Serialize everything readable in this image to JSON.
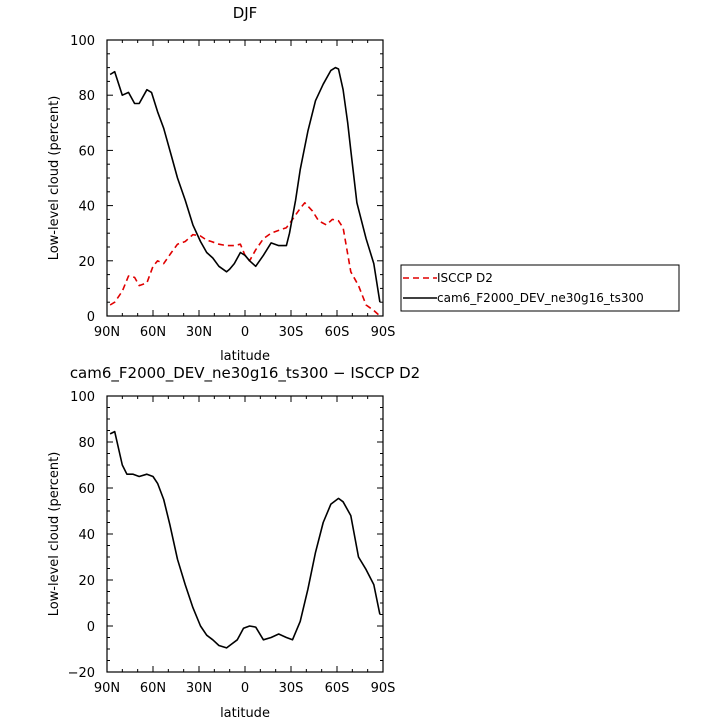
{
  "chart_data": [
    {
      "type": "line",
      "title": "DJF",
      "xlabel": "latitude",
      "ylabel": "Low-level cloud (percent)",
      "xlim": [
        90,
        -90
      ],
      "ylim": [
        0,
        100
      ],
      "xticks": [
        90,
        60,
        30,
        0,
        -30,
        -60,
        -90
      ],
      "xtick_labels": [
        "90N",
        "60N",
        "30N",
        "0",
        "30S",
        "60S",
        "90S"
      ],
      "yticks": [
        0,
        20,
        40,
        60,
        80,
        100
      ],
      "ytick_labels": [
        "0",
        "20",
        "40",
        "60",
        "80",
        "100"
      ],
      "legend_position": "right",
      "series": [
        {
          "name": "ISCCP D2",
          "color": "#e00000",
          "style": "dashed",
          "x": [
            88,
            85,
            80,
            76,
            72,
            69,
            64,
            60,
            57,
            53,
            48,
            44,
            39,
            34,
            29,
            25,
            22,
            17,
            12,
            7,
            3,
            0,
            -3,
            -7,
            -12,
            -17,
            -22,
            -27,
            -31,
            -36,
            -39,
            -44,
            -48,
            -53,
            -57,
            -61,
            -64,
            -69,
            -74,
            -79,
            -84,
            -88
          ],
          "y": [
            4,
            5,
            9,
            14.5,
            14,
            11,
            12,
            18,
            20,
            19,
            23,
            26,
            27,
            29.5,
            29,
            27.5,
            27,
            26,
            25.5,
            25.5,
            26,
            22,
            20,
            24,
            28,
            30,
            31,
            32,
            35,
            39,
            41,
            38,
            34.5,
            33,
            35,
            34.5,
            32,
            16,
            11,
            4,
            2,
            0
          ]
        },
        {
          "name": "cam6_F2000_DEV_ne30g16_ts300",
          "color": "#000000",
          "style": "solid",
          "x": [
            88,
            85,
            80,
            76,
            72,
            69,
            64,
            61,
            57,
            53,
            48,
            44,
            39,
            34,
            29,
            25,
            21,
            17,
            12,
            10,
            7,
            3,
            0,
            -3,
            -7,
            -12,
            -17,
            -22,
            -27,
            -29,
            -33,
            -36,
            -41,
            -46,
            -51,
            -56,
            -59,
            -61,
            -64,
            -67,
            -69,
            -73,
            -79,
            -84,
            -88
          ],
          "y": [
            87.5,
            88.5,
            80,
            81,
            77,
            77,
            82,
            81,
            74,
            68,
            58,
            50,
            42,
            33,
            27,
            23,
            21,
            18,
            16,
            17,
            19,
            23,
            22,
            20,
            18,
            22,
            26.5,
            25.5,
            25.5,
            30,
            42,
            53,
            67,
            78,
            84,
            89,
            90,
            89.5,
            82,
            70,
            60,
            41,
            28,
            19,
            5
          ]
        }
      ]
    },
    {
      "type": "line",
      "title": "cam6_F2000_DEV_ne30g16_ts300 − ISCCP D2",
      "xlabel": "latitude",
      "ylabel": "Low-level cloud (percent)",
      "xlim": [
        90,
        -90
      ],
      "ylim": [
        -20,
        100
      ],
      "xticks": [
        90,
        60,
        30,
        0,
        -30,
        -60,
        -90
      ],
      "xtick_labels": [
        "90N",
        "60N",
        "30N",
        "0",
        "30S",
        "60S",
        "90S"
      ],
      "yticks": [
        -20,
        0,
        20,
        40,
        60,
        80,
        100
      ],
      "ytick_labels": [
        "−20",
        "0",
        "20",
        "40",
        "60",
        "80",
        "100"
      ],
      "series": [
        {
          "color": "#000000",
          "style": "solid",
          "x": [
            88,
            85,
            80,
            77,
            73,
            69,
            64,
            60,
            57,
            53,
            49,
            44,
            39,
            34,
            29,
            25,
            21,
            17,
            12,
            9,
            5,
            1,
            -3,
            -7,
            -12,
            -17,
            -22,
            -27,
            -31,
            -36,
            -41,
            -46,
            -51,
            -56,
            -61,
            -64,
            -69,
            -74,
            -79,
            -84,
            -88
          ],
          "y": [
            83.5,
            84.5,
            70,
            66,
            66,
            65,
            66,
            65,
            62,
            55,
            44,
            29,
            18,
            8,
            0,
            -4,
            -6,
            -8.5,
            -9.5,
            -8,
            -6,
            -1,
            0,
            -0.5,
            -6,
            -5,
            -3.5,
            -5,
            -6,
            2,
            16,
            32,
            45,
            53,
            55.5,
            54,
            48,
            30,
            24.5,
            18,
            5
          ]
        }
      ]
    }
  ]
}
